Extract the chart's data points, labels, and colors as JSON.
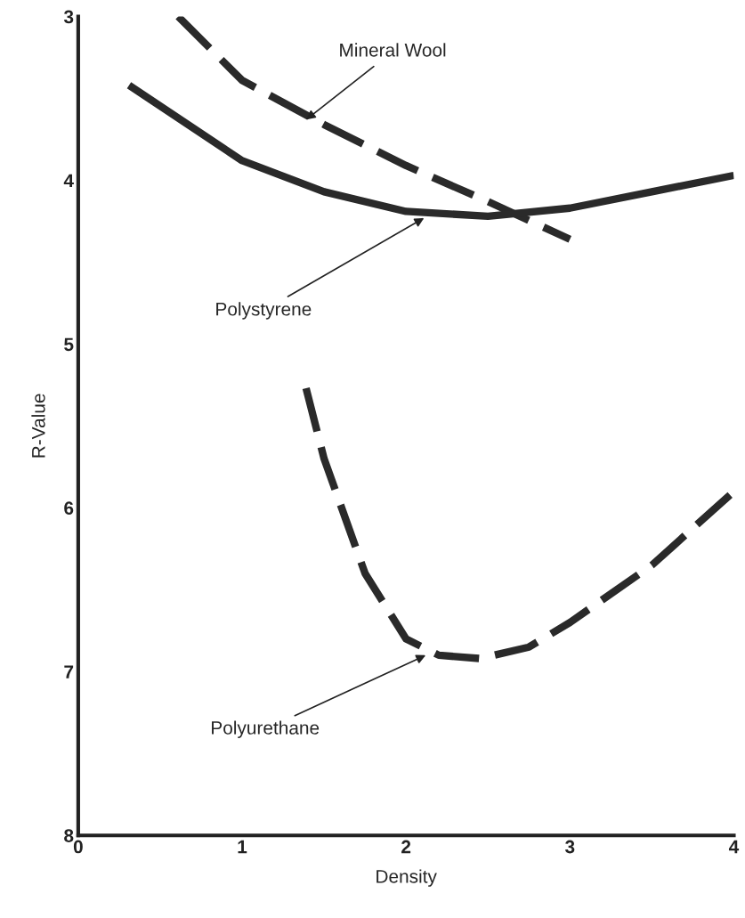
{
  "chart_data": {
    "type": "line",
    "xlabel": "Density",
    "ylabel": "R-Value",
    "xlim": [
      0,
      4
    ],
    "ylim": [
      8,
      3
    ],
    "xticks": [
      0,
      1,
      2,
      3,
      4
    ],
    "yticks": [
      3,
      4,
      5,
      6,
      7,
      8
    ],
    "grid": false,
    "legend": false,
    "marker": "none",
    "series": [
      {
        "color": "#2a2a2a",
        "line_style": "dashed",
        "x": [
          0.61,
          1.0,
          1.5,
          2.0,
          2.5,
          3.0
        ],
        "values": [
          3.0,
          3.39,
          3.66,
          3.91,
          4.13,
          4.36
        ]
      },
      {
        "color": "#2a2a2a",
        "line_style": "solid",
        "x": [
          0.31,
          1.0,
          1.5,
          2.0,
          2.5,
          3.0,
          3.5,
          4.0
        ],
        "values": [
          3.42,
          3.88,
          4.07,
          4.19,
          4.22,
          4.17,
          4.07,
          3.97
        ]
      },
      {
        "color": "#2a2a2a",
        "line_style": "dashed",
        "x": [
          1.39,
          1.5,
          1.75,
          2.0,
          2.2,
          2.45,
          2.75,
          3.0,
          3.5,
          4.0
        ],
        "values": [
          5.27,
          5.7,
          6.4,
          6.8,
          6.9,
          6.92,
          6.85,
          6.7,
          6.35,
          5.9
        ]
      }
    ],
    "annotations": [
      {
        "text": "Mineral Wool",
        "x": 1.39,
        "y": 3.63
      },
      {
        "text": "Polystyrene",
        "x": 2.11,
        "y": 4.23
      },
      {
        "text": "Polyurethane",
        "x": 2.12,
        "y": 6.9
      }
    ]
  }
}
